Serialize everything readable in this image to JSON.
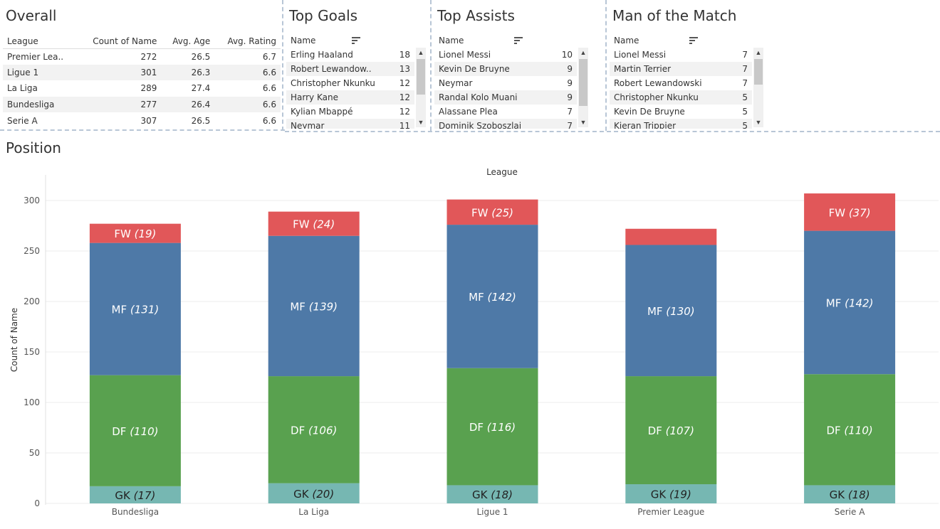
{
  "overall": {
    "title": "Overall",
    "columns": [
      "League",
      "Count of Name",
      "Avg. Age",
      "Avg. Rating"
    ],
    "rows": [
      [
        "Premier Lea..",
        "272",
        "26.5",
        "6.7"
      ],
      [
        "Ligue 1",
        "301",
        "26.3",
        "6.6"
      ],
      [
        "La Liga",
        "289",
        "27.4",
        "6.6"
      ],
      [
        "Bundesliga",
        "277",
        "26.4",
        "6.6"
      ],
      [
        "Serie A",
        "307",
        "26.5",
        "6.6"
      ]
    ]
  },
  "top_goals": {
    "title": "Top Goals",
    "header": "Name",
    "rows": [
      [
        "Erling Haaland",
        "18"
      ],
      [
        "Robert Lewandow..",
        "13"
      ],
      [
        "Christopher Nkunku",
        "12"
      ],
      [
        "Harry Kane",
        "12"
      ],
      [
        "Kylian Mbappé",
        "12"
      ],
      [
        "Neymar",
        "11"
      ]
    ]
  },
  "top_assists": {
    "title": "Top Assists",
    "header": "Name",
    "rows": [
      [
        "Lionel Messi",
        "10"
      ],
      [
        "Kevin De Bruyne",
        "9"
      ],
      [
        "Neymar",
        "9"
      ],
      [
        "Randal Kolo Muani",
        "9"
      ],
      [
        "Alassane Plea",
        "7"
      ],
      [
        "Dominik Szoboszlai",
        "7"
      ]
    ]
  },
  "man_of_the_match": {
    "title": "Man of the Match",
    "header": "Name",
    "rows": [
      [
        "Lionel Messi",
        "7"
      ],
      [
        "Martin Terrier",
        "7"
      ],
      [
        "Robert Lewandowski",
        "7"
      ],
      [
        "Christopher Nkunku",
        "5"
      ],
      [
        "Kevin De Bruyne",
        "5"
      ],
      [
        "Kieran Trippier",
        "5"
      ]
    ]
  },
  "position": {
    "title": "Position"
  },
  "colors": {
    "FW": "#e15759",
    "MF": "#4e79a7",
    "DF": "#59a14f",
    "GK": "#76b7b2"
  },
  "chart_data": {
    "type": "bar",
    "stacked": true,
    "xlabel": "League",
    "ylabel": "Count of Name",
    "ylim": [
      0,
      330
    ],
    "yticks": [
      0,
      50,
      100,
      150,
      200,
      250,
      300
    ],
    "grid": true,
    "categories": [
      "Bundesliga",
      "La Liga",
      "Ligue 1",
      "Premier League",
      "Serie A"
    ],
    "series": [
      {
        "name": "GK",
        "values": [
          17,
          20,
          18,
          19,
          18
        ]
      },
      {
        "name": "DF",
        "values": [
          110,
          106,
          116,
          107,
          110
        ]
      },
      {
        "name": "MF",
        "values": [
          131,
          139,
          142,
          130,
          142
        ]
      },
      {
        "name": "FW",
        "values": [
          19,
          24,
          25,
          16,
          37
        ]
      }
    ],
    "hidden_labels": [
      {
        "series": "FW",
        "category": "Premier League"
      }
    ]
  }
}
